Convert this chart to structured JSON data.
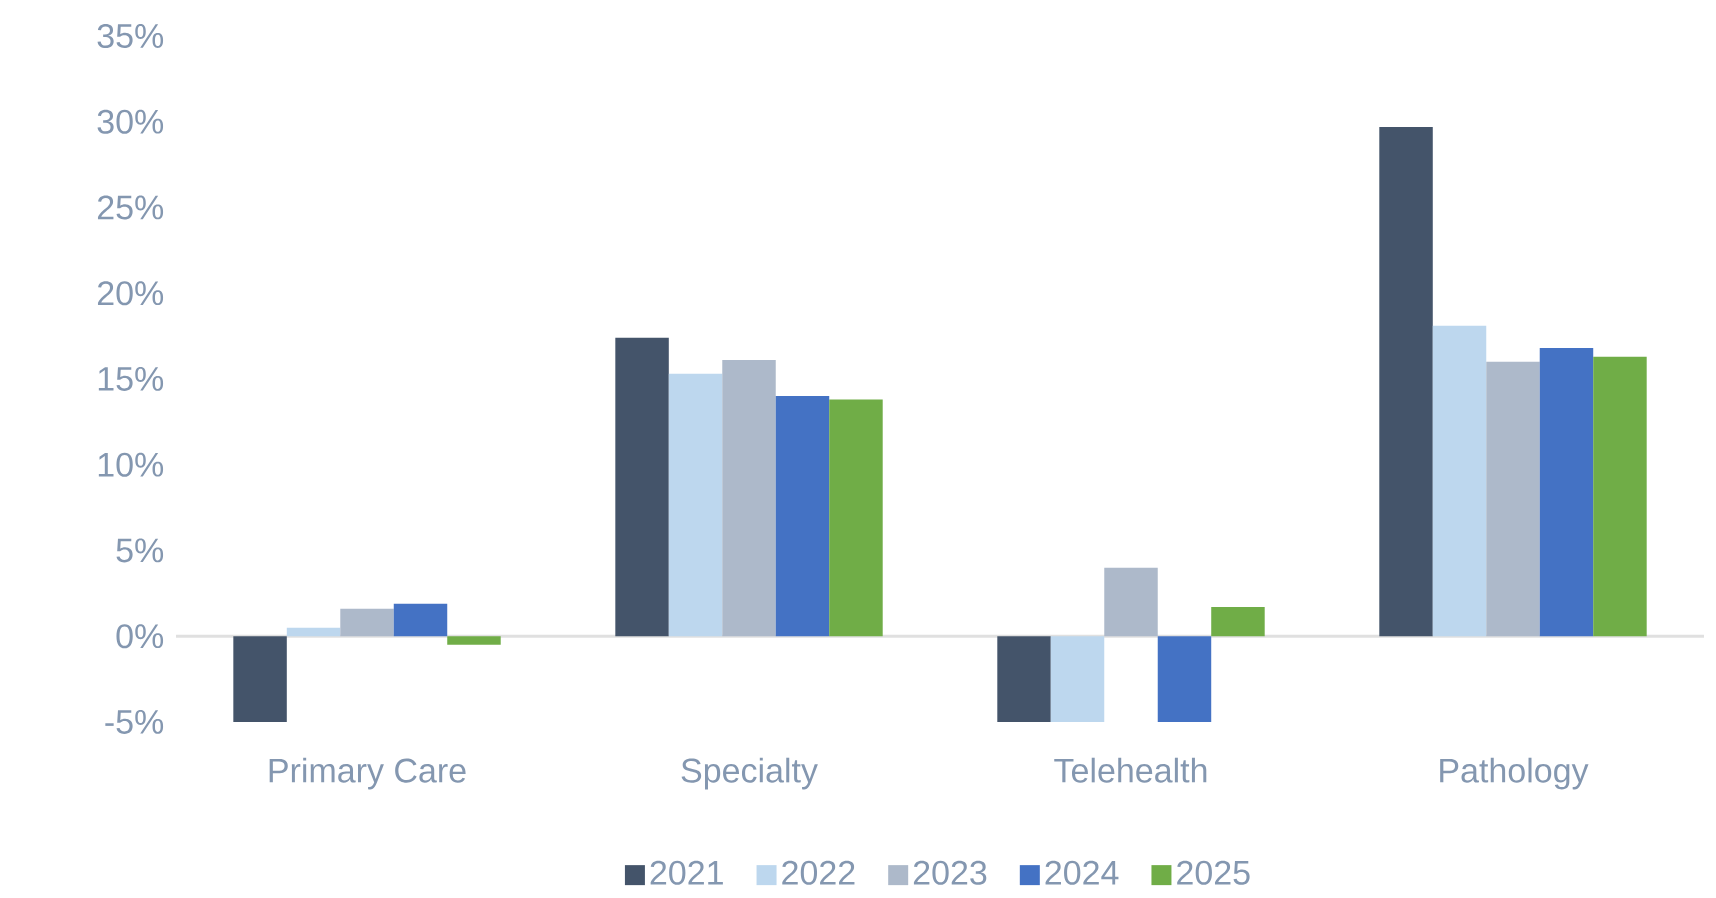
{
  "chart_data": {
    "type": "bar",
    "categories": [
      "Primary Care",
      "Specialty",
      "Telehealth",
      "Pathology"
    ],
    "series": [
      {
        "name": "2021",
        "color": "#44546a",
        "values": [
          -5,
          17.4,
          -5,
          29.7
        ]
      },
      {
        "name": "2022",
        "color": "#bdd7ee",
        "values": [
          0.5,
          15.3,
          -5,
          18.1
        ]
      },
      {
        "name": "2023",
        "color": "#adb9ca",
        "values": [
          1.6,
          16.1,
          4.0,
          16.0
        ]
      },
      {
        "name": "2024",
        "color": "#4472c4",
        "values": [
          1.9,
          14.0,
          -5,
          16.8
        ]
      },
      {
        "name": "2025",
        "color": "#70ad47",
        "values": [
          -0.5,
          13.8,
          1.7,
          16.3
        ]
      }
    ],
    "ylim": [
      -5,
      35
    ],
    "yticks": [
      {
        "value": -5,
        "label": "-5%"
      },
      {
        "value": 0,
        "label": "0%"
      },
      {
        "value": 5,
        "label": "5%"
      },
      {
        "value": 10,
        "label": "10%"
      },
      {
        "value": 15,
        "label": "15%"
      },
      {
        "value": 20,
        "label": "20%"
      },
      {
        "value": 25,
        "label": "25%"
      },
      {
        "value": 30,
        "label": "30%"
      },
      {
        "value": 35,
        "label": "35%"
      }
    ],
    "legend": "bottom"
  }
}
